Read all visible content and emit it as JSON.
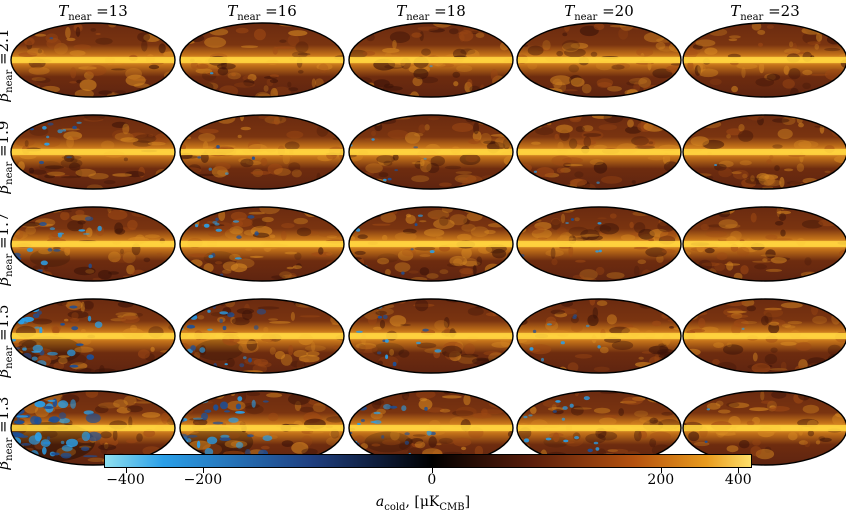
{
  "columns": [
    {
      "symbol": "T",
      "sub": "near",
      "value": " =13"
    },
    {
      "symbol": "T",
      "sub": "near",
      "value": " =16"
    },
    {
      "symbol": "T",
      "sub": "near",
      "value": " =18"
    },
    {
      "symbol": "T",
      "sub": "near",
      "value": " =20"
    },
    {
      "symbol": "T",
      "sub": "near",
      "value": " =23"
    }
  ],
  "rows": [
    {
      "symbol": "β",
      "sub": "near",
      "value": " =2.1",
      "cold": 0.05
    },
    {
      "symbol": "β",
      "sub": "near",
      "value": " =1.9",
      "cold": 0.25
    },
    {
      "symbol": "β",
      "sub": "near",
      "value": " =1.7",
      "cold": 0.45
    },
    {
      "symbol": "β",
      "sub": "near",
      "value": " =1.5",
      "cold": 0.7
    },
    {
      "symbol": "β",
      "sub": "near",
      "value": " =1.3",
      "cold": 1.0
    }
  ],
  "colorbar": {
    "ticks": [
      "−400",
      "−200",
      "0",
      "200",
      "400"
    ],
    "tick_values": [
      -400,
      -200,
      0,
      200,
      400
    ],
    "title": {
      "symbol": "a",
      "sub1": "cold",
      "mid": ", [μK",
      "sub2": "CMB",
      "end": "]"
    },
    "colors": [
      "#8fe0f0",
      "#2a9fe8",
      "#1f3f80",
      "#000000",
      "#5a1e0c",
      "#b5520f",
      "#e89a1d",
      "#ffe06a"
    ]
  }
}
